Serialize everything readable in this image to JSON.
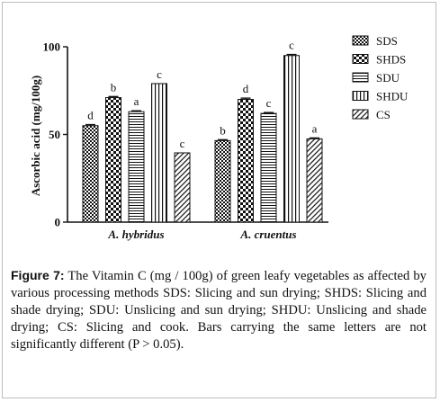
{
  "chart_data": {
    "type": "bar",
    "ylabel": "Ascorbic acid (mg/100g)",
    "xlabel": "",
    "ylim": [
      0,
      100
    ],
    "yticks": [
      0,
      50,
      100
    ],
    "categories": [
      "A. hybridus",
      "A. cruentus"
    ],
    "legend_position": "right",
    "series": [
      {
        "name": "SDS",
        "values": [
          55,
          46.5
        ],
        "letters": [
          "d",
          "b"
        ],
        "errors": [
          0.6,
          0.5
        ],
        "pattern": "checker-small"
      },
      {
        "name": "SHDS",
        "values": [
          71,
          70
        ],
        "letters": [
          "b",
          "d"
        ],
        "errors": [
          0.6,
          0.7
        ],
        "pattern": "checker-large"
      },
      {
        "name": "SDU",
        "values": [
          63,
          62
        ],
        "letters": [
          "a",
          "c"
        ],
        "errors": [
          0.5,
          0.5
        ],
        "pattern": "horizontal"
      },
      {
        "name": "SHDU",
        "values": [
          79,
          95
        ],
        "letters": [
          "c",
          "c"
        ],
        "errors": [
          0.0,
          0.6
        ],
        "pattern": "vertical"
      },
      {
        "name": "CS",
        "values": [
          39.5,
          47.5
        ],
        "letters": [
          "c",
          "a"
        ],
        "errors": [
          0.0,
          0.5
        ],
        "pattern": "diagonal"
      }
    ]
  },
  "caption": {
    "label": "Figure 7:",
    "text": "The Vitamin C (mg / 100g) of green leafy vegetables as affected by various processing methods SDS: Slicing and sun drying; SHDS: Slicing and shade drying; SDU: Unslicing and sun drying; SHDU: Unslicing and shade drying; CS: Slicing and cook. Bars carrying the same letters are not significantly different (P > 0.05)."
  },
  "colors": {
    "ink": "#111111",
    "frame": "#bdbdbd"
  }
}
